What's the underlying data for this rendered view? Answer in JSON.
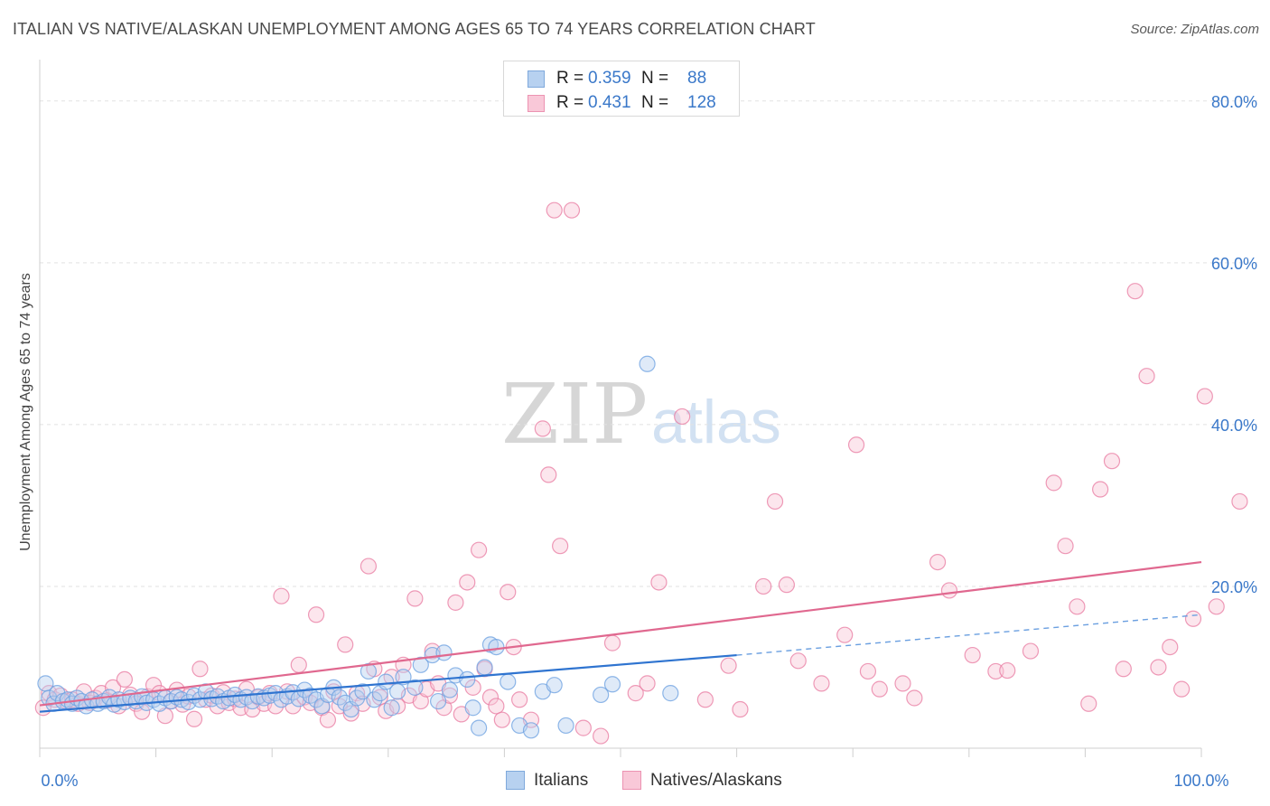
{
  "header": {
    "title": "ITALIAN VS NATIVE/ALASKAN UNEMPLOYMENT AMONG AGES 65 TO 74 YEARS CORRELATION CHART",
    "source": "Source: ZipAtlas.com"
  },
  "watermark": {
    "zip": "ZIP",
    "atlas": "atlas"
  },
  "legend": {
    "series": [
      {
        "swatch_color": "#b7d1f0",
        "swatch_border": "#7fa9dc",
        "r_label": "R =",
        "r_value": "0.359",
        "n_label": "N =",
        "n_value": "88"
      },
      {
        "swatch_color": "#f9c8d8",
        "swatch_border": "#ec93b2",
        "r_label": "R =",
        "r_value": "0.431",
        "n_label": "N =",
        "n_value": "128"
      }
    ],
    "bottom": [
      {
        "label": "Italians"
      },
      {
        "label": "Natives/Alaskans"
      }
    ]
  },
  "chart_data": {
    "type": "scatter",
    "title": "ITALIAN VS NATIVE/ALASKAN UNEMPLOYMENT AMONG AGES 65 TO 74 YEARS CORRELATION CHART",
    "xlabel": "",
    "ylabel": "Unemployment Among Ages 65 to 74 years",
    "xlim": [
      0,
      100
    ],
    "ylim": [
      0,
      84
    ],
    "x_tick_labels": [
      {
        "value": 0,
        "label": "0.0%"
      },
      {
        "value": 100,
        "label": "100.0%"
      }
    ],
    "x_minor_ticks": [
      0,
      10,
      20,
      30,
      40,
      50,
      60,
      70,
      80,
      90,
      100
    ],
    "y_tick_labels": [
      {
        "value": 20,
        "label": "20.0%"
      },
      {
        "value": 40,
        "label": "40.0%"
      },
      {
        "value": 60,
        "label": "60.0%"
      },
      {
        "value": 80,
        "label": "80.0%"
      }
    ],
    "grid": true,
    "legend_position": "top-center",
    "series": [
      {
        "name": "Italians",
        "color": "#6a9fe0",
        "fill": "#b7d1f0",
        "r": 0.359,
        "n": 88,
        "trend": {
          "x_start": 0,
          "y_start": 4.5,
          "x_solid_end": 60,
          "y_solid_end": 11.5,
          "x_end": 100,
          "y_end": 16.5
        },
        "points": [
          [
            0.5,
            8.0
          ],
          [
            0.8,
            6.2
          ],
          [
            1.2,
            5.5
          ],
          [
            1.5,
            6.8
          ],
          [
            2.0,
            5.8
          ],
          [
            2.4,
            6.0
          ],
          [
            2.8,
            5.5
          ],
          [
            3.2,
            6.2
          ],
          [
            3.6,
            5.8
          ],
          [
            4.0,
            5.2
          ],
          [
            4.5,
            6.0
          ],
          [
            5.0,
            5.5
          ],
          [
            5.5,
            5.8
          ],
          [
            6.0,
            6.3
          ],
          [
            6.4,
            5.4
          ],
          [
            6.8,
            6.0
          ],
          [
            7.3,
            5.7
          ],
          [
            7.8,
            6.2
          ],
          [
            8.3,
            5.8
          ],
          [
            8.8,
            6.4
          ],
          [
            9.2,
            5.6
          ],
          [
            9.8,
            6.0
          ],
          [
            10.3,
            5.5
          ],
          [
            10.8,
            6.2
          ],
          [
            11.3,
            5.8
          ],
          [
            11.8,
            6.3
          ],
          [
            12.2,
            6.0
          ],
          [
            12.8,
            5.7
          ],
          [
            13.3,
            6.5
          ],
          [
            13.8,
            6.0
          ],
          [
            14.3,
            7.0
          ],
          [
            14.8,
            6.1
          ],
          [
            15.3,
            6.4
          ],
          [
            15.8,
            5.8
          ],
          [
            16.3,
            6.2
          ],
          [
            16.8,
            6.6
          ],
          [
            17.3,
            6.0
          ],
          [
            17.8,
            6.3
          ],
          [
            18.3,
            5.8
          ],
          [
            18.8,
            6.4
          ],
          [
            19.3,
            6.2
          ],
          [
            19.8,
            6.5
          ],
          [
            20.3,
            6.8
          ],
          [
            20.8,
            6.0
          ],
          [
            21.3,
            6.4
          ],
          [
            21.8,
            6.9
          ],
          [
            22.3,
            6.1
          ],
          [
            22.8,
            7.2
          ],
          [
            23.3,
            6.5
          ],
          [
            23.8,
            6.0
          ],
          [
            24.3,
            5.2
          ],
          [
            24.8,
            6.6
          ],
          [
            25.3,
            7.5
          ],
          [
            25.8,
            6.3
          ],
          [
            26.3,
            5.6
          ],
          [
            26.8,
            4.8
          ],
          [
            27.3,
            6.2
          ],
          [
            27.8,
            7.0
          ],
          [
            28.3,
            9.5
          ],
          [
            28.8,
            6.0
          ],
          [
            29.3,
            6.8
          ],
          [
            29.8,
            8.2
          ],
          [
            30.3,
            5.0
          ],
          [
            30.8,
            7.0
          ],
          [
            31.3,
            8.8
          ],
          [
            32.3,
            7.5
          ],
          [
            32.8,
            10.3
          ],
          [
            33.8,
            11.5
          ],
          [
            34.3,
            5.8
          ],
          [
            34.8,
            11.8
          ],
          [
            35.3,
            7.2
          ],
          [
            35.8,
            9.0
          ],
          [
            36.8,
            8.5
          ],
          [
            37.3,
            5.0
          ],
          [
            37.8,
            2.5
          ],
          [
            38.3,
            10.0
          ],
          [
            38.8,
            12.8
          ],
          [
            39.3,
            12.5
          ],
          [
            40.3,
            8.2
          ],
          [
            41.3,
            2.8
          ],
          [
            42.3,
            2.2
          ],
          [
            43.3,
            7.0
          ],
          [
            44.3,
            7.8
          ],
          [
            45.3,
            2.8
          ],
          [
            48.3,
            6.6
          ],
          [
            49.3,
            7.9
          ],
          [
            52.3,
            47.5
          ],
          [
            54.3,
            6.8
          ]
        ]
      },
      {
        "name": "Natives/Alaskans",
        "color": "#e879a0",
        "fill": "#f9c8d8",
        "r": 0.431,
        "n": 128,
        "trend": {
          "x_start": 0,
          "y_start": 5.3,
          "x_end": 100,
          "y_end": 23.0
        },
        "points": [
          [
            0.3,
            5.0
          ],
          [
            0.8,
            6.8
          ],
          [
            1.3,
            6.0
          ],
          [
            1.8,
            6.5
          ],
          [
            2.3,
            5.8
          ],
          [
            2.8,
            6.0
          ],
          [
            3.3,
            5.5
          ],
          [
            3.8,
            7.0
          ],
          [
            4.3,
            5.6
          ],
          [
            4.8,
            6.2
          ],
          [
            5.3,
            6.8
          ],
          [
            5.8,
            5.9
          ],
          [
            6.3,
            7.5
          ],
          [
            6.8,
            5.2
          ],
          [
            7.3,
            8.5
          ],
          [
            7.8,
            6.6
          ],
          [
            8.3,
            5.5
          ],
          [
            8.8,
            4.5
          ],
          [
            9.3,
            6.4
          ],
          [
            9.8,
            7.8
          ],
          [
            10.3,
            6.8
          ],
          [
            10.8,
            4.0
          ],
          [
            11.3,
            5.8
          ],
          [
            11.8,
            7.2
          ],
          [
            12.3,
            5.4
          ],
          [
            12.8,
            6.4
          ],
          [
            13.3,
            3.6
          ],
          [
            13.8,
            9.8
          ],
          [
            14.3,
            6.0
          ],
          [
            14.8,
            6.5
          ],
          [
            15.3,
            5.2
          ],
          [
            15.8,
            6.9
          ],
          [
            16.3,
            5.6
          ],
          [
            16.8,
            6.1
          ],
          [
            17.3,
            5.0
          ],
          [
            17.8,
            7.3
          ],
          [
            18.3,
            4.8
          ],
          [
            18.8,
            6.3
          ],
          [
            19.3,
            5.5
          ],
          [
            19.8,
            6.8
          ],
          [
            20.3,
            5.2
          ],
          [
            20.8,
            18.8
          ],
          [
            21.3,
            7.0
          ],
          [
            21.8,
            5.2
          ],
          [
            22.3,
            10.3
          ],
          [
            22.8,
            6.3
          ],
          [
            23.3,
            5.6
          ],
          [
            23.8,
            16.5
          ],
          [
            24.3,
            5.0
          ],
          [
            24.8,
            3.5
          ],
          [
            25.3,
            7.0
          ],
          [
            25.8,
            5.2
          ],
          [
            26.3,
            12.8
          ],
          [
            26.8,
            4.3
          ],
          [
            27.3,
            6.8
          ],
          [
            27.8,
            5.5
          ],
          [
            28.3,
            22.5
          ],
          [
            28.8,
            9.8
          ],
          [
            29.3,
            6.3
          ],
          [
            29.8,
            4.6
          ],
          [
            30.3,
            8.8
          ],
          [
            30.8,
            5.2
          ],
          [
            31.3,
            10.3
          ],
          [
            31.8,
            6.5
          ],
          [
            32.3,
            18.5
          ],
          [
            32.8,
            5.8
          ],
          [
            33.3,
            7.3
          ],
          [
            33.8,
            12.0
          ],
          [
            34.3,
            8.0
          ],
          [
            34.8,
            5.0
          ],
          [
            35.3,
            6.5
          ],
          [
            35.8,
            18.0
          ],
          [
            36.3,
            4.2
          ],
          [
            36.8,
            20.5
          ],
          [
            37.3,
            7.5
          ],
          [
            37.8,
            24.5
          ],
          [
            38.3,
            9.8
          ],
          [
            38.8,
            6.3
          ],
          [
            39.3,
            5.2
          ],
          [
            39.8,
            3.5
          ],
          [
            40.3,
            19.3
          ],
          [
            40.8,
            12.5
          ],
          [
            41.3,
            6.0
          ],
          [
            42.3,
            3.5
          ],
          [
            43.3,
            39.5
          ],
          [
            43.8,
            33.8
          ],
          [
            44.3,
            66.5
          ],
          [
            44.8,
            25.0
          ],
          [
            45.8,
            66.5
          ],
          [
            46.8,
            2.5
          ],
          [
            48.3,
            1.5
          ],
          [
            49.3,
            13.0
          ],
          [
            51.3,
            6.8
          ],
          [
            52.3,
            8.0
          ],
          [
            53.3,
            20.5
          ],
          [
            55.3,
            41.0
          ],
          [
            57.3,
            6.0
          ],
          [
            59.3,
            10.2
          ],
          [
            60.3,
            4.8
          ],
          [
            62.3,
            20.0
          ],
          [
            63.3,
            30.5
          ],
          [
            64.3,
            20.2
          ],
          [
            65.3,
            10.8
          ],
          [
            67.3,
            8.0
          ],
          [
            69.3,
            14.0
          ],
          [
            70.3,
            37.5
          ],
          [
            71.3,
            9.5
          ],
          [
            72.3,
            7.3
          ],
          [
            74.3,
            8.0
          ],
          [
            75.3,
            6.2
          ],
          [
            77.3,
            23.0
          ],
          [
            78.3,
            19.5
          ],
          [
            80.3,
            11.5
          ],
          [
            82.3,
            9.5
          ],
          [
            83.3,
            9.6
          ],
          [
            85.3,
            12.0
          ],
          [
            87.3,
            32.8
          ],
          [
            88.3,
            25.0
          ],
          [
            89.3,
            17.5
          ],
          [
            90.3,
            5.5
          ],
          [
            91.3,
            32.0
          ],
          [
            92.3,
            35.5
          ],
          [
            93.3,
            9.8
          ],
          [
            94.3,
            56.5
          ],
          [
            95.3,
            46.0
          ],
          [
            96.3,
            10.0
          ],
          [
            97.3,
            12.5
          ],
          [
            98.3,
            7.3
          ],
          [
            99.3,
            16.0
          ],
          [
            100.3,
            43.5
          ],
          [
            101.3,
            17.5
          ],
          [
            103.3,
            30.5
          ]
        ]
      }
    ]
  }
}
